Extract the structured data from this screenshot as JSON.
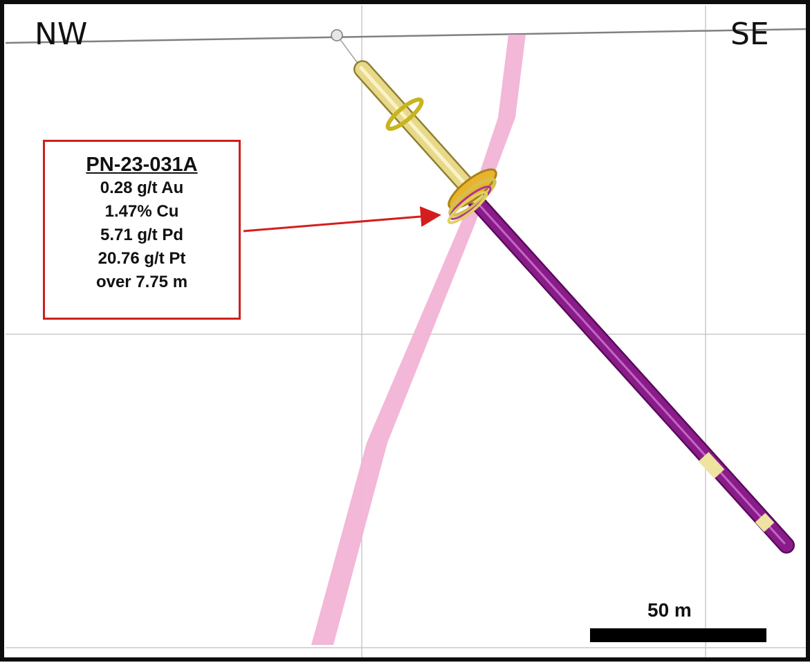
{
  "section": {
    "left_direction": "NW",
    "right_direction": "SE"
  },
  "callout": {
    "hole_id": "PN-23-031A",
    "assays": [
      "0.28 g/t Au",
      "1.47% Cu",
      "5.71 g/t Pd",
      "20.76 g/t Pt",
      "over 7.75 m"
    ]
  },
  "scale": {
    "label": "50 m"
  },
  "colors": {
    "border": "#0d0d0d",
    "grid": "#c8c8c8",
    "topography": "#808080",
    "mineralized_zone": "#f2b3d6",
    "drill_hole_upper": "#e8d98a",
    "drill_hole_lower": "#8a1c8a",
    "intercept_ring": "#e0b030",
    "callout_border": "#cc1f1f",
    "arrow": "#d41e1e"
  }
}
